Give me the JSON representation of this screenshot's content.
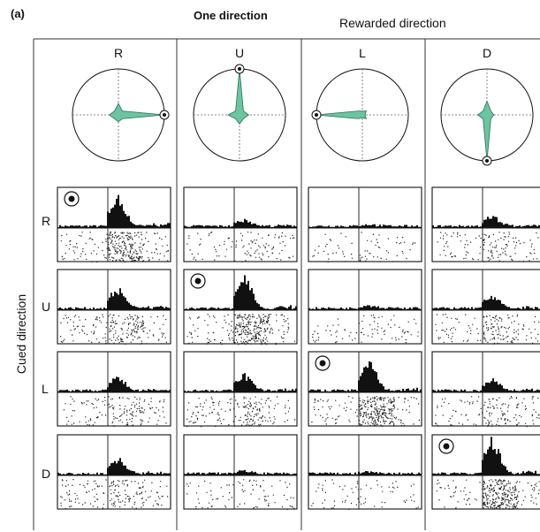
{
  "figure": {
    "panel_label": "(a)",
    "condition_title": "One direction",
    "column_group_title": "Rewarded direction",
    "row_axis_title": "Cued direction",
    "colors": {
      "polar_fill": "#6cc4a1",
      "ink": "#111111"
    },
    "columns": [
      {
        "label": "R",
        "rewarded_angle_deg": 0
      },
      {
        "label": "U",
        "rewarded_angle_deg": 90
      },
      {
        "label": "L",
        "rewarded_angle_deg": 180
      },
      {
        "label": "D",
        "rewarded_angle_deg": 270
      }
    ],
    "rows": [
      {
        "label": "R"
      },
      {
        "label": "U"
      },
      {
        "label": "L"
      },
      {
        "label": "D"
      }
    ],
    "target_marker_icon": "bullseye-icon"
  },
  "chart_data": {
    "type": "polar",
    "title": "",
    "note": "Polar tuning plots: response strength toward R (0°), U (90°), L (180°), D (270°); peak marked by bullseye on the rewarded direction.",
    "series": [
      {
        "name": "",
        "directions": [
          "R",
          "U",
          "L",
          "D"
        ],
        "values": [
          1.0,
          0.25,
          0.2,
          0.15
        ]
      },
      {
        "name": "",
        "directions": [
          "R",
          "U",
          "L",
          "D"
        ],
        "values": [
          0.2,
          1.0,
          0.25,
          0.2
        ]
      },
      {
        "name": "",
        "directions": [
          "R",
          "U",
          "L",
          "D"
        ],
        "values": [
          0.05,
          0.08,
          1.0,
          0.06
        ]
      },
      {
        "name": "",
        "directions": [
          "R",
          "U",
          "L",
          "D"
        ],
        "values": [
          0.15,
          0.3,
          0.2,
          1.0
        ]
      }
    ],
    "psth_peak_strength": [
      [
        0.9,
        0.2,
        0.05,
        0.3
      ],
      [
        0.6,
        1.0,
        0.1,
        0.4
      ],
      [
        0.4,
        0.5,
        1.0,
        0.35
      ],
      [
        0.45,
        0.1,
        0.05,
        1.0
      ]
    ]
  }
}
